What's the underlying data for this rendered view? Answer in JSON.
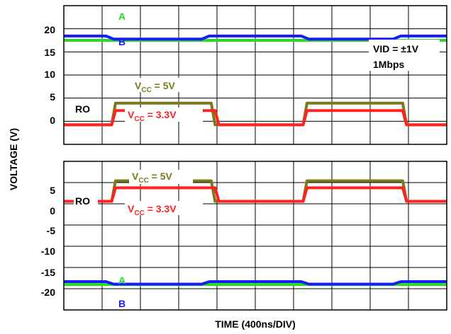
{
  "chart_data": [
    {
      "type": "line",
      "ylabel": "VOLTAGE (V)",
      "ylim": [
        -5,
        25
      ],
      "yticks": [
        "20",
        "15",
        "10",
        "5",
        "0"
      ],
      "x_divisions": 10,
      "annotation_lines": [
        "VID = ±1V",
        "1Mbps"
      ],
      "labels": {
        "a": "A",
        "b": "B",
        "ro": "RO",
        "vcc5_pre": "V",
        "vcc5_sub": "CC",
        "vcc5_post": " = 5V",
        "vcc33_pre": "V",
        "vcc33_sub": "CC",
        "vcc33_post": " = 3.3V"
      },
      "series": [
        {
          "name": "A",
          "color": "#22dd22",
          "x": [
            0,
            1.1,
            1.2,
            3.7,
            3.8,
            6.2,
            6.3,
            8.7,
            8.8,
            10
          ],
          "y": [
            19.5,
            19.5,
            19.5,
            19.5,
            19.5,
            19.5,
            19.5,
            19.5,
            19.5,
            19.5
          ]
        },
        {
          "name": "B",
          "color": "#1a1aff",
          "x": [
            0,
            1.1,
            1.3,
            3.6,
            3.8,
            6.2,
            6.4,
            8.6,
            8.8,
            10
          ],
          "y": [
            20.5,
            20.5,
            19.8,
            19.8,
            20.5,
            20.5,
            19.8,
            19.8,
            20.5,
            20.5
          ]
        },
        {
          "name": "V_CC = 5V",
          "color": "#7a7a1a",
          "x": [
            0,
            1.25,
            1.35,
            3.85,
            3.95,
            6.25,
            6.35,
            8.85,
            8.95,
            10
          ],
          "y": [
            0,
            0,
            5,
            5,
            0,
            0,
            5,
            5,
            0,
            0
          ]
        },
        {
          "name": "V_CC = 3.3V",
          "color": "#ff2020",
          "x": [
            0,
            1.25,
            1.35,
            3.95,
            4.05,
            6.25,
            6.35,
            8.85,
            8.95,
            10
          ],
          "y": [
            0,
            0,
            3.3,
            3.3,
            0,
            0,
            3.3,
            3.3,
            0,
            0
          ]
        }
      ]
    },
    {
      "type": "line",
      "ylim": [
        -25,
        10
      ],
      "yticks": [
        "5",
        "0",
        "-5",
        "-10",
        "-15",
        "-20"
      ],
      "x_divisions": 10,
      "xlabel": "TIME (400ns/DIV)",
      "labels": {
        "a": "A",
        "b": "B",
        "ro": "RO",
        "vcc5_pre": "V",
        "vcc5_sub": "CC",
        "vcc5_post": " = 5V",
        "vcc33_pre": "V",
        "vcc33_sub": "CC",
        "vcc33_post": " = 3.3V"
      },
      "series": [
        {
          "name": "A",
          "color": "#22dd22",
          "x": [
            0,
            1.1,
            1.2,
            3.7,
            3.8,
            6.2,
            6.3,
            8.7,
            8.8,
            10
          ],
          "y": [
            -20.3,
            -20.3,
            -20.3,
            -20.3,
            -20.3,
            -20.3,
            -20.3,
            -20.3,
            -20.3,
            -20.3
          ]
        },
        {
          "name": "B",
          "color": "#1a1aff",
          "x": [
            0,
            1.1,
            1.3,
            3.6,
            3.8,
            6.2,
            6.4,
            8.6,
            8.8,
            10
          ],
          "y": [
            -19.6,
            -19.6,
            -20.2,
            -20.2,
            -19.6,
            -19.6,
            -20.2,
            -20.2,
            -19.6,
            -19.6
          ]
        },
        {
          "name": "V_CC = 5V",
          "color": "#7a7a1a",
          "x": [
            0,
            1.25,
            1.35,
            3.85,
            3.95,
            6.25,
            6.35,
            8.85,
            8.95,
            10
          ],
          "y": [
            0,
            0,
            5,
            5,
            0,
            0,
            5,
            5,
            0,
            0
          ]
        },
        {
          "name": "V_CC = 3.3V",
          "color": "#ff2020",
          "x": [
            0,
            1.25,
            1.35,
            3.95,
            4.05,
            6.25,
            6.35,
            8.85,
            8.95,
            10
          ],
          "y": [
            0,
            0,
            3.3,
            3.3,
            0,
            0,
            3.3,
            3.3,
            0,
            0
          ]
        }
      ]
    }
  ]
}
